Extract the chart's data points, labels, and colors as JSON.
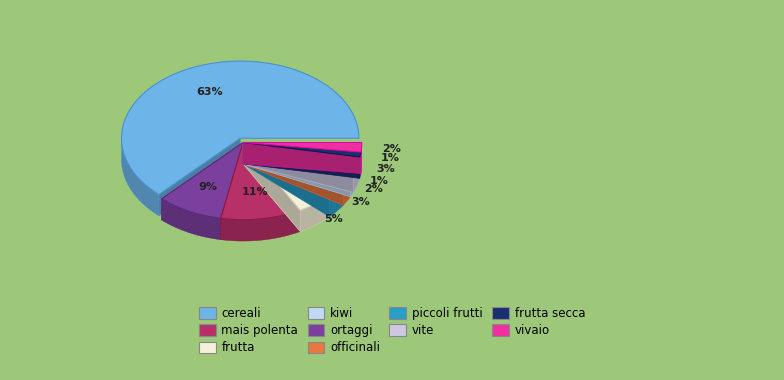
{
  "labels": [
    "cereali",
    "ortaggi",
    "mais polenta",
    "frutta",
    "piccoli frutti",
    "officinali",
    "kiwi",
    "vite",
    "frutta secca",
    "vivaio"
  ],
  "values": [
    63,
    9,
    11,
    5,
    3,
    2,
    1,
    3,
    1,
    2
  ],
  "colors": [
    "#6db5e8",
    "#7b3f9e",
    "#b83068",
    "#f5f0d8",
    "#2a9dc8",
    "#e87840",
    "#c0d8f0",
    "#ccc8e0",
    "#1a2f70",
    "#f030a0"
  ],
  "edge_colors": [
    "#4a90d0",
    "#5a2a7e",
    "#901848",
    "#d8d0b8",
    "#1878a8",
    "#c86030",
    "#a0b8d8",
    "#aaa8c8",
    "#0a1850",
    "#d010a0"
  ],
  "background_color": "#9dc87a",
  "border_color": "#a08060",
  "startangle": 90,
  "explode_index": 0,
  "explode_amount": 0.06,
  "shadow_depth": 0.18,
  "legend_items": [
    [
      "cereali",
      "#6db5e8"
    ],
    [
      "mais polenta",
      "#b83068"
    ],
    [
      "frutta",
      "#f5f0d8"
    ],
    [
      "kiwi",
      "#c0d8f0"
    ],
    [
      "ortaggi",
      "#7b3f9e"
    ],
    [
      "officinali",
      "#e87840"
    ],
    [
      "piccoli frutti",
      "#2a9dc8"
    ],
    [
      "vite",
      "#ccc8e0"
    ],
    [
      "frutta secca",
      "#1a2f70"
    ],
    [
      "vivaio",
      "#f030a0"
    ]
  ],
  "legend_edge_color": "#888888"
}
